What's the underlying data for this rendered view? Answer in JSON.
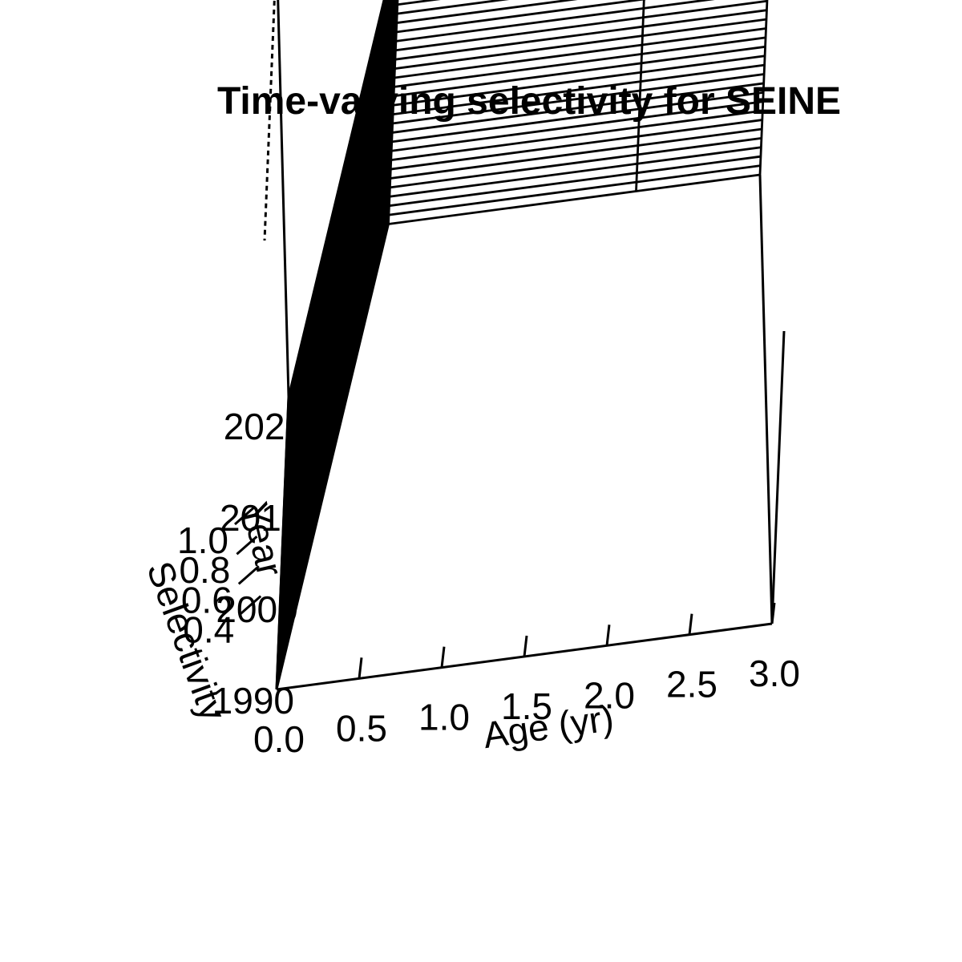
{
  "chart_data": {
    "type": "surface",
    "title": "Time-varying selectivity for SEINE",
    "xlabel": "Age (yr)",
    "ylabel": "Year",
    "zlabel": "Selectivity",
    "x_ticks": [
      "0.0",
      "0.5",
      "1.0",
      "1.5",
      "2.0",
      "2.5",
      "3.0"
    ],
    "y_ticks": [
      "1990",
      "2000",
      "2010",
      "2020"
    ],
    "z_ticks": [
      "0.4",
      "0.6",
      "0.8",
      "1.0"
    ],
    "xlim": [
      0,
      3
    ],
    "ylim": [
      1990,
      2022
    ],
    "zlim": [
      0,
      1
    ],
    "age": [
      0,
      0.75,
      2.25,
      3
    ],
    "years": [
      1990,
      1991,
      1992,
      1993,
      1994,
      1995,
      1996,
      1997,
      1998,
      1999,
      2000,
      2001,
      2002,
      2003,
      2004,
      2005,
      2006,
      2007,
      2008,
      2009,
      2010,
      2011,
      2012,
      2013,
      2014,
      2015,
      2016,
      2017,
      2018,
      2019,
      2020,
      2021,
      2022
    ],
    "selectivity_by_age": [
      0,
      1,
      1,
      1
    ],
    "grid": false
  }
}
